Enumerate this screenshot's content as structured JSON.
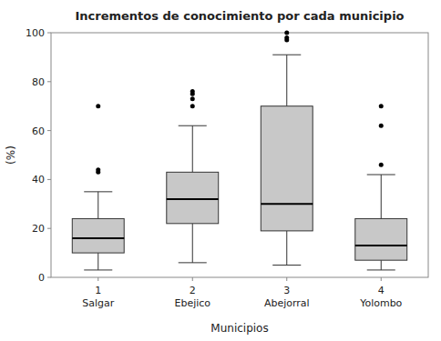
{
  "chart_data": {
    "type": "box",
    "title": "Incrementos de conocimiento por cada municipio",
    "xlabel": "Municipios",
    "ylabel": "(%)",
    "categories": [
      "1\nSalgar",
      "2\nEbejico",
      "3\nAbejorral",
      "4\nYolombo"
    ],
    "boxes": [
      {
        "q1": 10,
        "median": 16,
        "q3": 24,
        "whisker_low": 3,
        "whisker_high": 35,
        "fliers": [
          43,
          44,
          70
        ]
      },
      {
        "q1": 22,
        "median": 32,
        "q3": 43,
        "whisker_low": 6,
        "whisker_high": 62,
        "fliers": [
          70,
          73,
          75,
          76
        ]
      },
      {
        "q1": 19,
        "median": 30,
        "q3": 70,
        "whisker_low": 5,
        "whisker_high": 91,
        "fliers": [
          97,
          98,
          100
        ]
      },
      {
        "q1": 7,
        "median": 13,
        "q3": 24,
        "whisker_low": 3,
        "whisker_high": 42,
        "fliers": [
          46,
          62,
          70
        ]
      }
    ],
    "color": "#c8c8c8",
    "ylim": [
      0,
      100
    ],
    "yticks": [
      0,
      20,
      40,
      60,
      80,
      100
    ]
  }
}
